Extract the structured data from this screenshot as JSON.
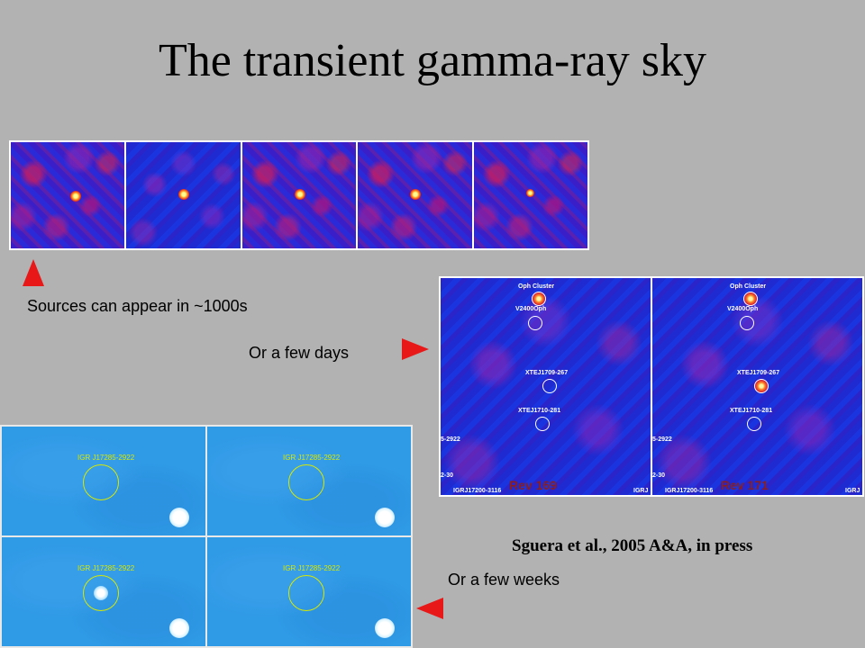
{
  "slide": {
    "title": "The transient gamma-ray sky",
    "captions": {
      "seconds": "Sources can appear in ~1000s",
      "days": "Or a few days",
      "weeks": "Or a few weeks"
    },
    "citation": "Sguera et al., 2005 A&A, in press"
  },
  "strip": {
    "frames": [
      {
        "style": "red"
      },
      {
        "style": "blue"
      },
      {
        "style": "red"
      },
      {
        "style": "red"
      },
      {
        "style": "red"
      }
    ]
  },
  "maps": [
    {
      "rev_label": "Rev 169",
      "sources": [
        "Oph Cluster",
        "V2400Oph",
        "XTEJ1709-267",
        "XTEJ1710-281"
      ],
      "edge_labels": [
        "5-2922",
        "2-30",
        "IGRJ17200-3116",
        "IGRJ"
      ]
    },
    {
      "rev_label": "Rev 171",
      "sources": [
        "Oph Cluster",
        "V2400Oph",
        "XTEJ1709-267",
        "XTEJ1710-281"
      ],
      "edge_labels": [
        "5-2922",
        "2-30",
        "IGRJ17200-3116",
        "IGRJ"
      ]
    }
  ],
  "grid": {
    "label": "IGR J17285-2922"
  },
  "colors": {
    "background": "#b2b2b2",
    "arrow": "#e81818",
    "ring": "#d8e800"
  }
}
